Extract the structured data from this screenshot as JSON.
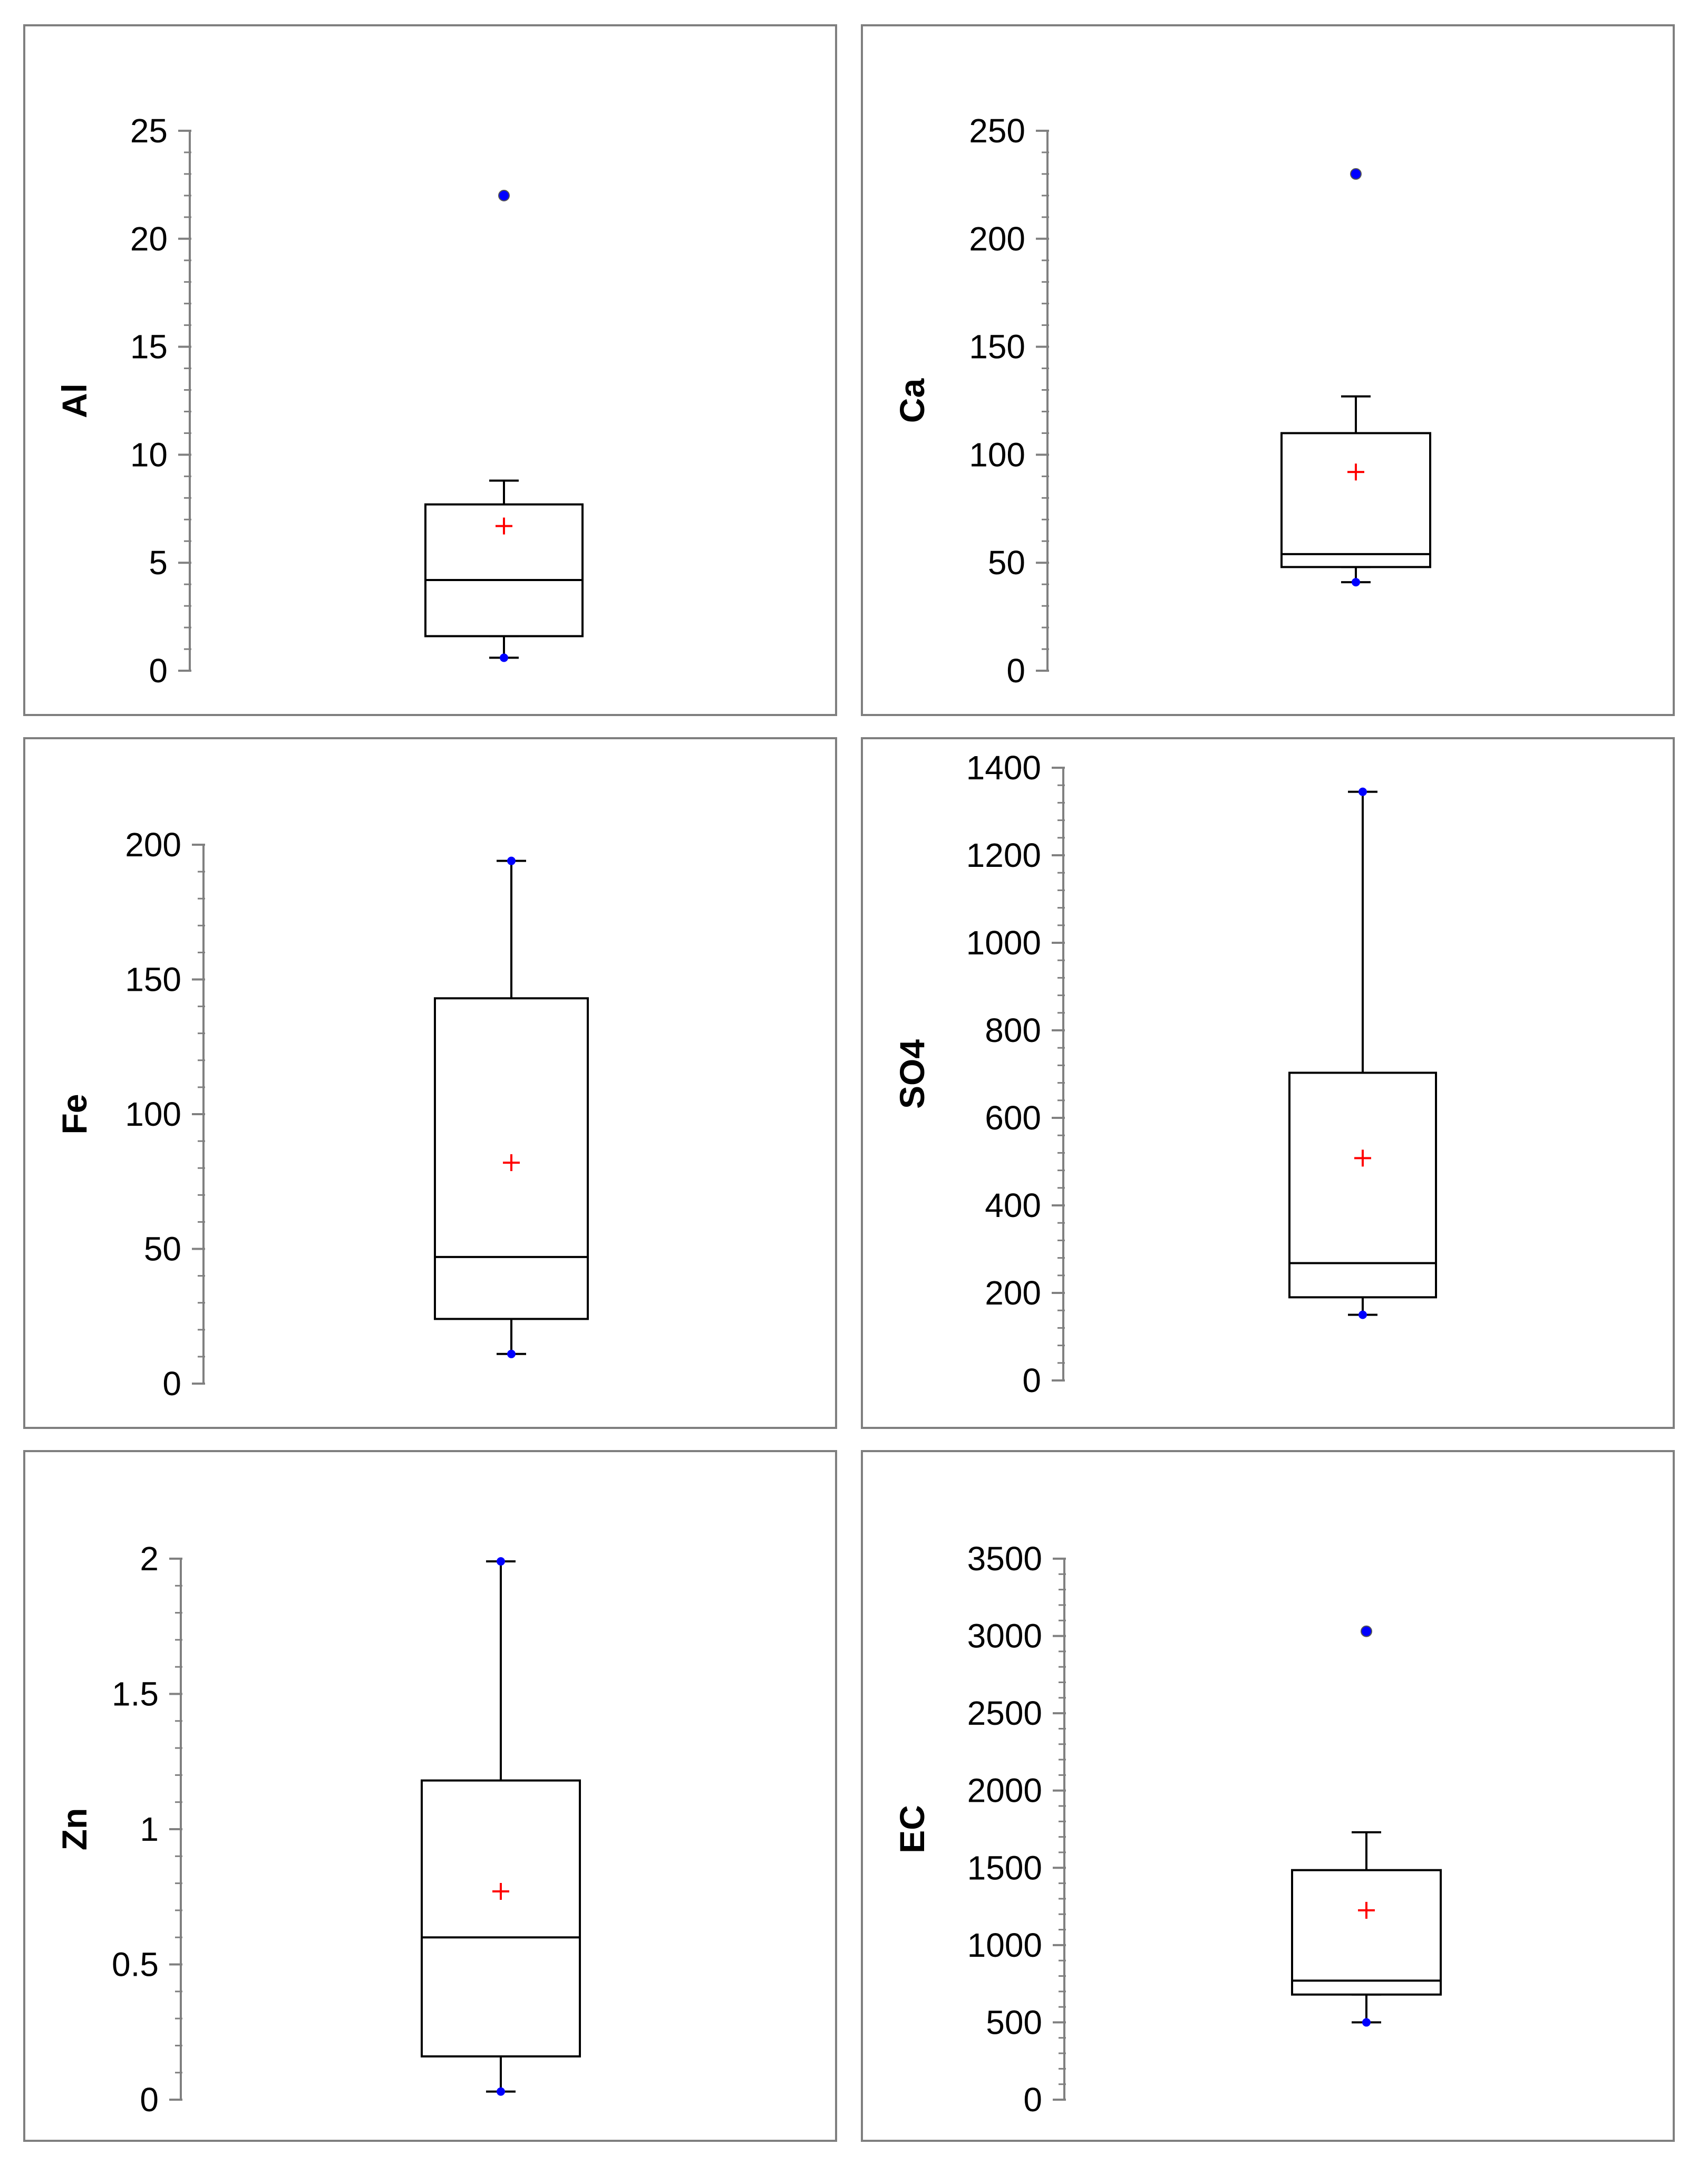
{
  "chart_data": [
    {
      "type": "box",
      "ylabel": "Al",
      "ylim": [
        0,
        25
      ],
      "yticks": [
        0,
        5,
        10,
        15,
        20,
        25
      ],
      "ytick_labels": [
        "0",
        "5",
        "10",
        "15",
        "20",
        "25"
      ],
      "minor_ticks_per_major": 5,
      "min": 0.6,
      "whisker_low": 1.6,
      "q1": 1.6,
      "median": 4.2,
      "q3": 7.7,
      "whisker_high": 8.8,
      "max": 22.0,
      "mean": 6.7,
      "outliers": [
        22.0
      ]
    },
    {
      "type": "box",
      "ylabel": "Ca",
      "ylim": [
        0,
        250
      ],
      "yticks": [
        0,
        50,
        100,
        150,
        200,
        250
      ],
      "ytick_labels": [
        "0",
        "50",
        "100",
        "150",
        "200",
        "250"
      ],
      "minor_ticks_per_major": 5,
      "min": 41,
      "whisker_low": 48,
      "q1": 48,
      "median": 54,
      "q3": 110,
      "whisker_high": 127,
      "max": 230,
      "mean": 92,
      "outliers": [
        230
      ]
    },
    {
      "type": "box",
      "ylabel": "Fe",
      "ylim": [
        0,
        200
      ],
      "yticks": [
        0,
        50,
        100,
        150,
        200
      ],
      "ytick_labels": [
        "0",
        "50",
        "100",
        "150",
        "200"
      ],
      "minor_ticks_per_major": 5,
      "min": 11,
      "whisker_low": 11,
      "q1": 24,
      "median": 47,
      "q3": 143,
      "whisker_high": 194,
      "max": 194,
      "mean": 82,
      "outliers": []
    },
    {
      "type": "box",
      "ylabel": "SO4",
      "ylim": [
        0,
        1400
      ],
      "yticks": [
        0,
        200,
        400,
        600,
        800,
        1000,
        1200,
        1400
      ],
      "ytick_labels": [
        "0",
        "200",
        "400",
        "600",
        "800",
        "1000",
        "1200",
        "1400"
      ],
      "minor_ticks_per_major": 5,
      "min": 150,
      "whisker_low": 150,
      "q1": 190,
      "median": 268,
      "q3": 703,
      "whisker_high": 1345,
      "max": 1345,
      "mean": 508,
      "outliers": []
    },
    {
      "type": "box",
      "ylabel": "Zn",
      "ylim": [
        0,
        2
      ],
      "yticks": [
        0,
        0.5,
        1,
        1.5,
        2
      ],
      "ytick_labels": [
        "0",
        "0.5",
        "1",
        "1.5",
        "2"
      ],
      "minor_ticks_per_major": 5,
      "min": 0.03,
      "whisker_low": 0.03,
      "q1": 0.16,
      "median": 0.6,
      "q3": 1.18,
      "whisker_high": 1.99,
      "max": 1.99,
      "mean": 0.77,
      "outliers": []
    },
    {
      "type": "box",
      "ylabel": "EC",
      "ylim": [
        0,
        3500
      ],
      "yticks": [
        0,
        500,
        1000,
        1500,
        2000,
        2500,
        3000,
        3500
      ],
      "ytick_labels": [
        "0",
        "500",
        "1000",
        "1500",
        "2000",
        "2500",
        "3000",
        "3500"
      ],
      "minor_ticks_per_major": 5,
      "min": 500,
      "whisker_low": 680,
      "q1": 680,
      "median": 770,
      "q3": 1485,
      "whisker_high": 1730,
      "max": 3030,
      "mean": 1225,
      "outliers": [
        3030
      ]
    }
  ],
  "colors": {
    "frame": "#7f7f7f",
    "axis": "#808080",
    "box": "#000000",
    "mean_marker": "#ff0000",
    "point": "#0000ff"
  }
}
